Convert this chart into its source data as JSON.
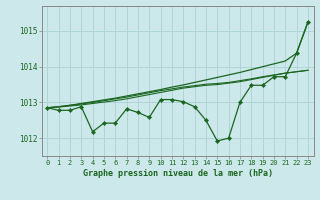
{
  "title": "Graphe pression niveau de la mer (hPa)",
  "ylim": [
    1011.5,
    1015.7
  ],
  "yticks": [
    1012,
    1013,
    1014,
    1015
  ],
  "background_color": "#cde8ea",
  "grid_color": "#b0d4d8",
  "line_color": "#1a6620",
  "text_color": "#1a6620",
  "series_main": [
    1012.85,
    1012.78,
    1012.78,
    1012.88,
    1012.18,
    1012.42,
    1012.42,
    1012.82,
    1012.72,
    1012.58,
    1013.08,
    1013.08,
    1013.02,
    1012.88,
    1012.5,
    1011.92,
    1012.0,
    1013.0,
    1013.48,
    1013.48,
    1013.72,
    1013.72,
    1014.38,
    1015.25
  ],
  "series_smooth1": [
    1012.85,
    1012.87,
    1012.9,
    1012.93,
    1012.97,
    1013.01,
    1013.05,
    1013.1,
    1013.16,
    1013.22,
    1013.28,
    1013.34,
    1013.4,
    1013.44,
    1013.48,
    1013.5,
    1013.54,
    1013.58,
    1013.64,
    1013.7,
    1013.76,
    1013.82,
    1013.86,
    1013.9
  ],
  "series_smooth2": [
    1012.85,
    1012.88,
    1012.92,
    1012.96,
    1013.0,
    1013.05,
    1013.1,
    1013.15,
    1013.21,
    1013.27,
    1013.33,
    1013.38,
    1013.43,
    1013.47,
    1013.51,
    1013.53,
    1013.56,
    1013.61,
    1013.66,
    1013.72,
    1013.77,
    1013.82,
    1013.86,
    1013.9
  ],
  "series_trend": [
    1012.85,
    1012.88,
    1012.92,
    1012.97,
    1013.02,
    1013.07,
    1013.12,
    1013.18,
    1013.24,
    1013.3,
    1013.36,
    1013.43,
    1013.49,
    1013.56,
    1013.63,
    1013.7,
    1013.77,
    1013.84,
    1013.92,
    1014.0,
    1014.08,
    1014.16,
    1014.38,
    1015.25
  ]
}
